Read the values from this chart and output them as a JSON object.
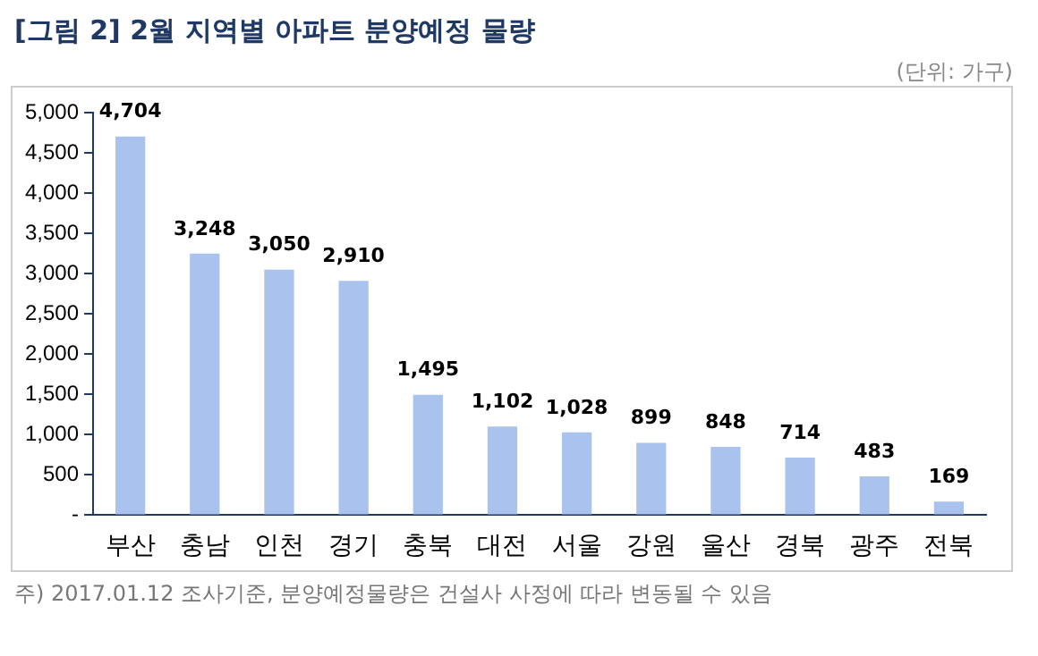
{
  "chart_data": {
    "type": "bar",
    "title": "[그림 2] 2월 지역별 아파트 분양예정 물량",
    "categories": [
      "부산",
      "충남",
      "인천",
      "경기",
      "충북",
      "대전",
      "서울",
      "강원",
      "울산",
      "경북",
      "광주",
      "전북"
    ],
    "values": [
      4704,
      3248,
      3050,
      2910,
      1495,
      1102,
      1028,
      899,
      848,
      714,
      483,
      169
    ],
    "value_labels": [
      "4,704",
      "3,248",
      "3,050",
      "2,910",
      "1,495",
      "1,102",
      "1,028",
      "899",
      "848",
      "714",
      "483",
      "169"
    ],
    "color": "#a9c2ee",
    "ylim": [
      0,
      5000
    ],
    "yticks": [
      {
        "value": 0,
        "label": "-"
      },
      500,
      {
        "value": 1000,
        "label": "1,000"
      },
      {
        "value": 1500,
        "label": "1,500"
      },
      {
        "value": 2000,
        "label": "2,000"
      },
      {
        "value": 2500,
        "label": "2,500"
      },
      {
        "value": 3000,
        "label": "3,000"
      },
      {
        "value": 3500,
        "label": "3,500"
      },
      {
        "value": 4000,
        "label": "4,000"
      },
      {
        "value": 4500,
        "label": "4,500"
      },
      {
        "value": 5000,
        "label": "5,000"
      }
    ],
    "grid": false,
    "annotations": [
      "(단위: 가구)",
      "주) 2017.01.12 조사기준, 분양예정물량은 건설사 사정에 따라 변동될 수 있음"
    ]
  }
}
